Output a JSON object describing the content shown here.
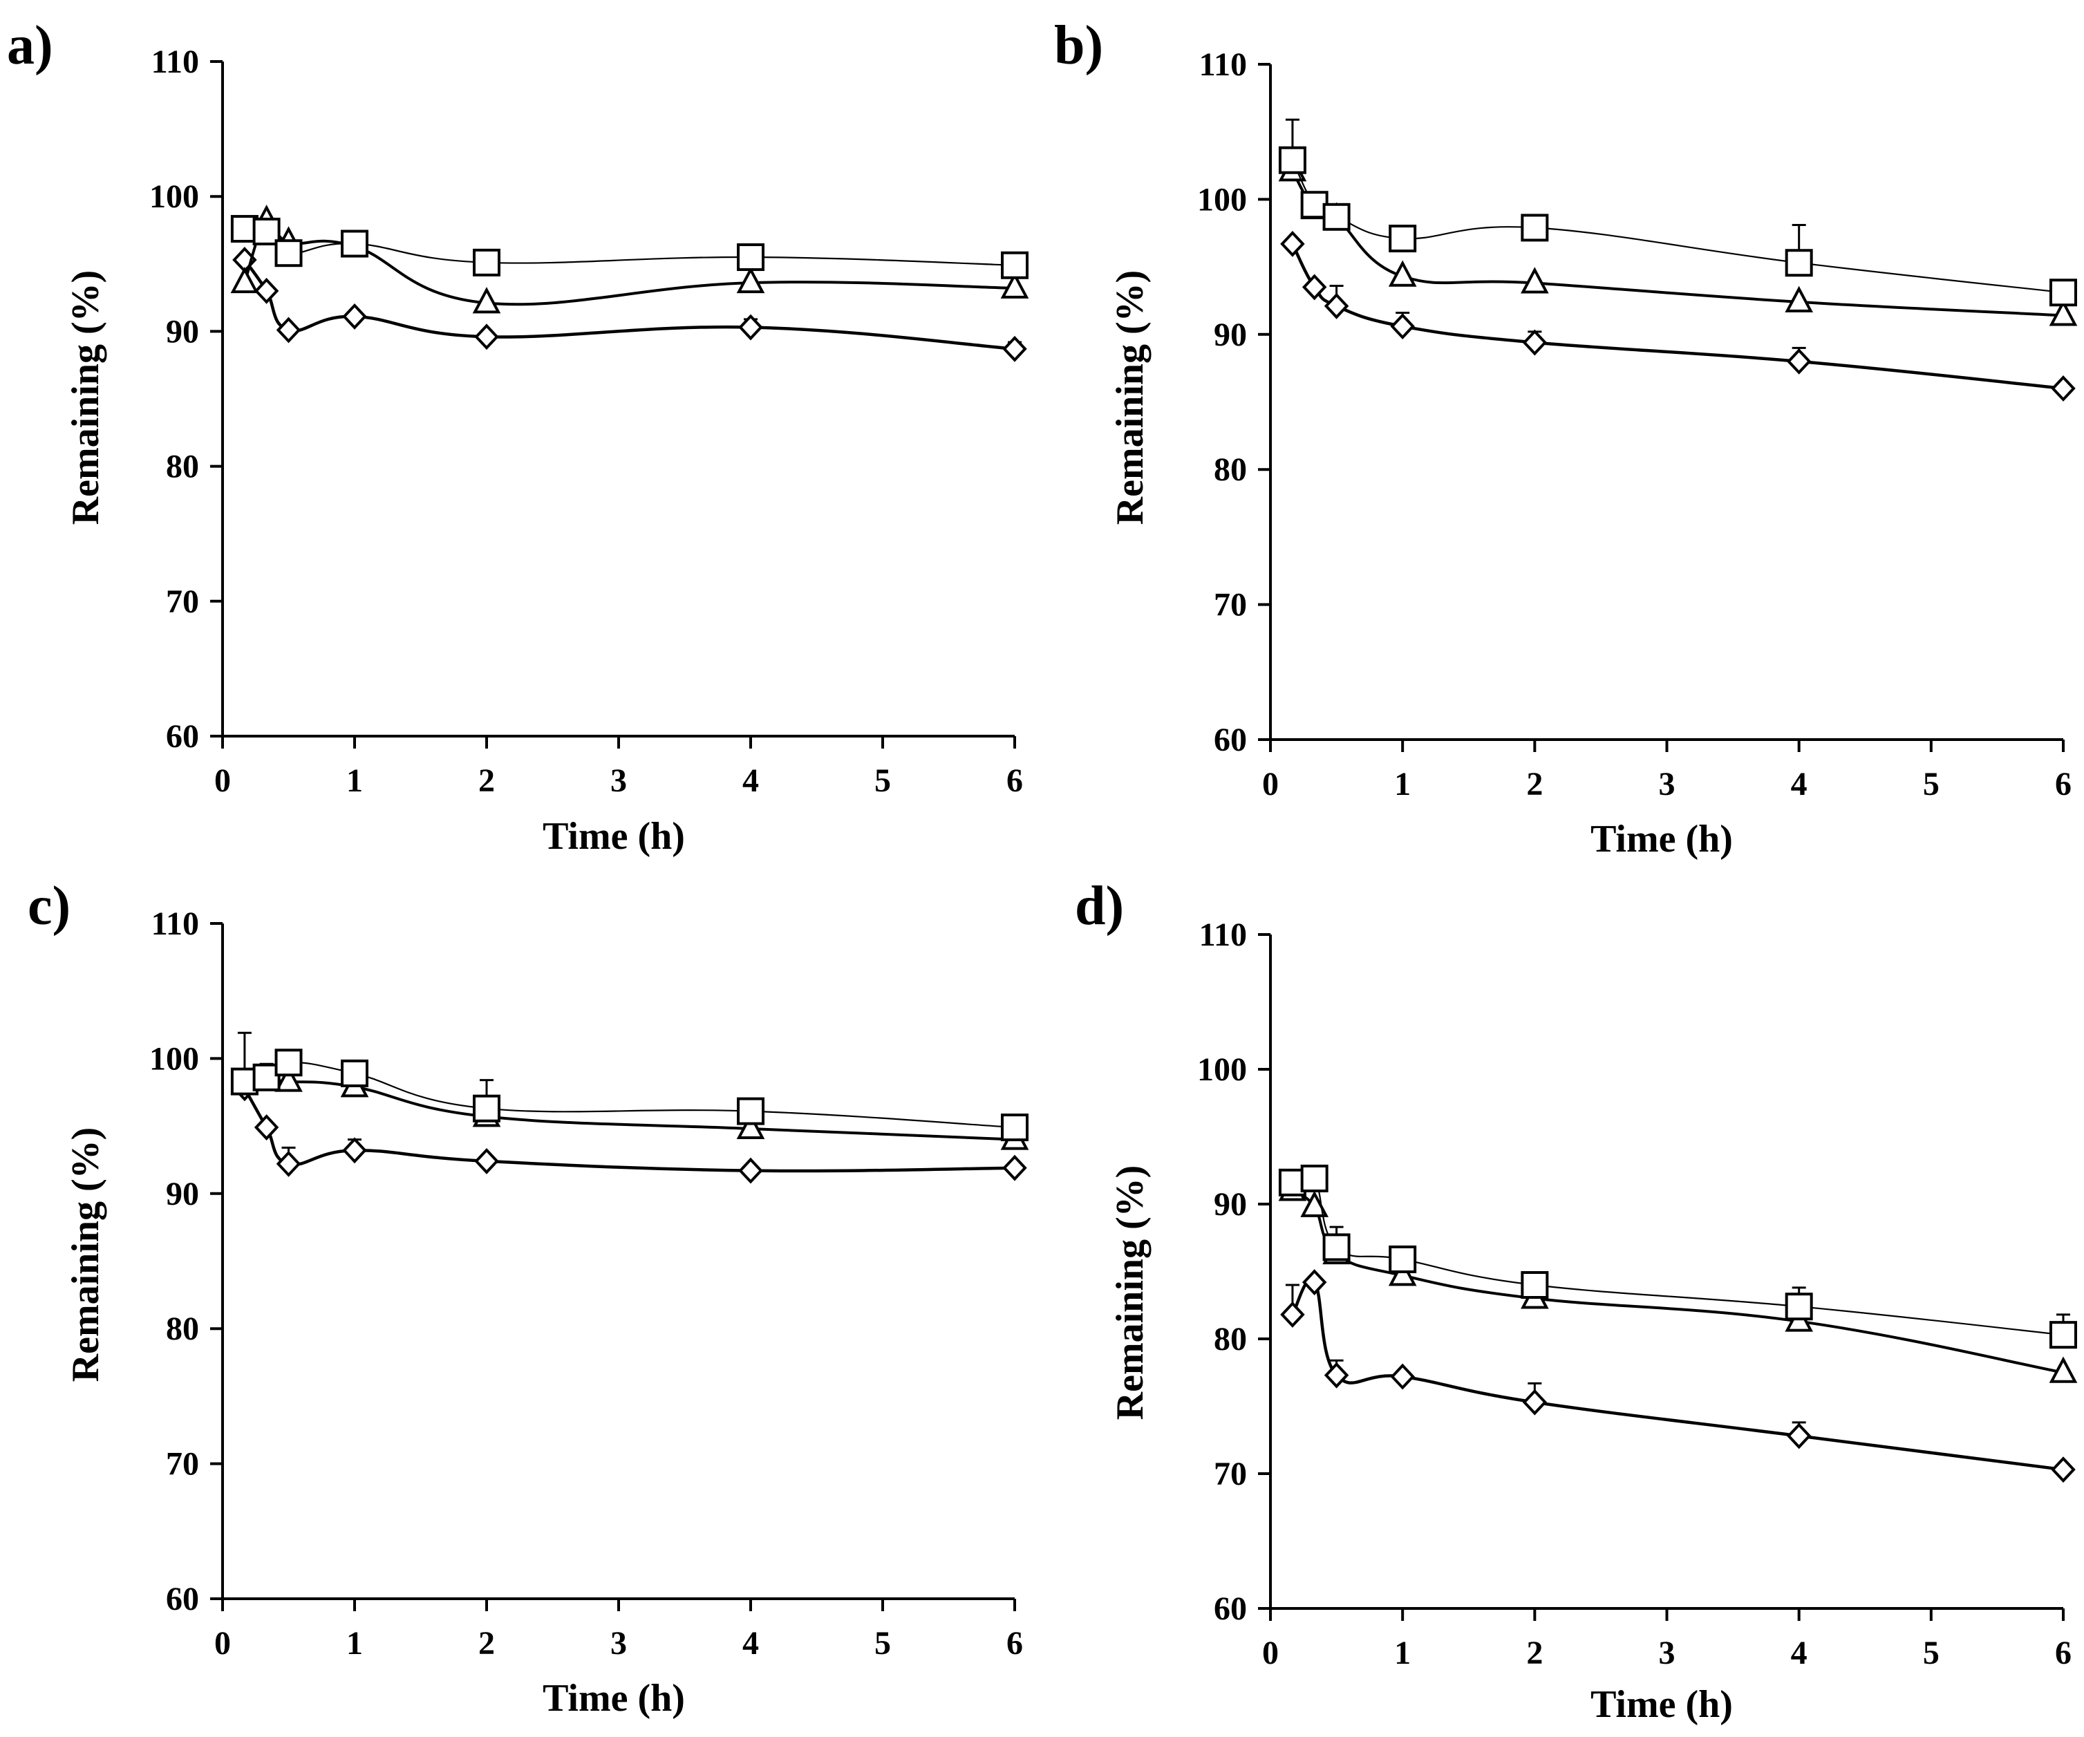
{
  "chart_data": [
    {
      "panel_label": "a)",
      "type": "line",
      "xlabel": "Time (h)",
      "ylabel": "Remaining (%)",
      "xlim": [
        0,
        6
      ],
      "ylim": [
        60,
        110
      ],
      "xticks": [
        "0",
        "1",
        "2",
        "3",
        "4",
        "5",
        "6"
      ],
      "yticks": [
        "60",
        "70",
        "80",
        "90",
        "100",
        "110"
      ],
      "x": [
        0.167,
        0.333,
        0.5,
        1,
        2,
        4,
        6
      ],
      "series": [
        {
          "name": "diamond",
          "marker": "diamond",
          "values": [
            95.3,
            93.0,
            90.1,
            91.1,
            89.6,
            90.3,
            88.7
          ],
          "err": [
            0,
            0,
            0,
            0,
            0,
            0.6,
            0.5
          ]
        },
        {
          "name": "triangle",
          "marker": "triangle",
          "values": [
            93.6,
            98.2,
            96.6,
            96.3,
            92.1,
            93.6,
            93.2
          ],
          "err": [
            0,
            0,
            0,
            0,
            0,
            0,
            0
          ]
        },
        {
          "name": "square",
          "marker": "square",
          "values": [
            97.6,
            97.4,
            95.8,
            96.5,
            95.1,
            95.5,
            94.9
          ],
          "err": [
            0,
            0,
            0,
            0,
            0,
            0,
            0.6
          ]
        }
      ]
    },
    {
      "panel_label": "b)",
      "type": "line",
      "xlabel": "Time (h)",
      "ylabel": "Remaining (%)",
      "xlim": [
        0,
        6
      ],
      "ylim": [
        60,
        110
      ],
      "xticks": [
        "0",
        "1",
        "2",
        "3",
        "4",
        "5",
        "6"
      ],
      "yticks": [
        "60",
        "70",
        "80",
        "90",
        "100",
        "110"
      ],
      "x": [
        0.167,
        0.333,
        0.5,
        1,
        2,
        4,
        6
      ],
      "series": [
        {
          "name": "diamond",
          "marker": "diamond",
          "values": [
            96.7,
            93.5,
            92.1,
            90.6,
            89.4,
            88.0,
            86.0
          ],
          "err": [
            0,
            0,
            1.5,
            1.0,
            0.8,
            1.0,
            0
          ]
        },
        {
          "name": "triangle",
          "marker": "triangle",
          "values": [
            102.1,
            99.3,
            98.6,
            94.3,
            93.8,
            92.4,
            91.4
          ],
          "err": [
            0,
            0,
            0,
            0,
            0,
            0,
            0
          ]
        },
        {
          "name": "square",
          "marker": "square",
          "values": [
            102.9,
            99.6,
            98.7,
            97.1,
            97.9,
            95.3,
            93.1
          ],
          "err": [
            3.0,
            0,
            0.8,
            0,
            0,
            2.8,
            0
          ]
        }
      ]
    },
    {
      "panel_label": "c)",
      "type": "line",
      "xlabel": "Time (h)",
      "ylabel": "Remaining (%)",
      "xlim": [
        0,
        6
      ],
      "ylim": [
        60,
        110
      ],
      "xticks": [
        "0",
        "1",
        "2",
        "3",
        "4",
        "5",
        "6"
      ],
      "yticks": [
        "60",
        "70",
        "80",
        "90",
        "100",
        "110"
      ],
      "x": [
        0.167,
        0.333,
        0.5,
        1,
        2,
        4,
        6
      ],
      "series": [
        {
          "name": "diamond",
          "marker": "diamond",
          "values": [
            97.8,
            94.9,
            92.2,
            93.2,
            92.4,
            91.7,
            91.9
          ],
          "err": [
            0,
            0,
            1.2,
            0.8,
            0,
            0,
            0
          ]
        },
        {
          "name": "triangle",
          "marker": "triangle",
          "values": [
            98.1,
            98.4,
            98.3,
            97.9,
            95.7,
            94.8,
            94.0
          ],
          "err": [
            0,
            0,
            0,
            0,
            0,
            0,
            0
          ]
        },
        {
          "name": "square",
          "marker": "square",
          "values": [
            98.3,
            98.6,
            99.7,
            98.9,
            96.3,
            96.1,
            94.9
          ],
          "err": [
            3.6,
            1.0,
            0,
            0,
            2.1,
            0,
            0
          ]
        }
      ]
    },
    {
      "panel_label": "d)",
      "type": "line",
      "xlabel": "Time (h)",
      "ylabel": "Remaining (%)",
      "xlim": [
        0,
        6
      ],
      "ylim": [
        60,
        110
      ],
      "xticks": [
        "0",
        "1",
        "2",
        "3",
        "4",
        "5",
        "6"
      ],
      "yticks": [
        "60",
        "70",
        "80",
        "90",
        "100",
        "110"
      ],
      "x": [
        0.167,
        0.333,
        0.5,
        1,
        2,
        4,
        6
      ],
      "series": [
        {
          "name": "diamond",
          "marker": "diamond",
          "values": [
            81.8,
            84.2,
            77.3,
            77.2,
            75.3,
            72.8,
            70.3
          ],
          "err": [
            2.2,
            0,
            1.1,
            0,
            1.4,
            1.0,
            0
          ]
        },
        {
          "name": "triangle",
          "marker": "triangle",
          "values": [
            91.0,
            89.8,
            86.3,
            84.7,
            83.0,
            81.3,
            77.5
          ],
          "err": [
            0,
            0,
            0,
            0,
            0,
            0,
            0
          ]
        },
        {
          "name": "square",
          "marker": "square",
          "values": [
            91.6,
            91.9,
            86.8,
            85.9,
            84.0,
            82.4,
            80.3
          ],
          "err": [
            0,
            0,
            1.5,
            0,
            0,
            1.4,
            1.5
          ]
        }
      ]
    }
  ]
}
